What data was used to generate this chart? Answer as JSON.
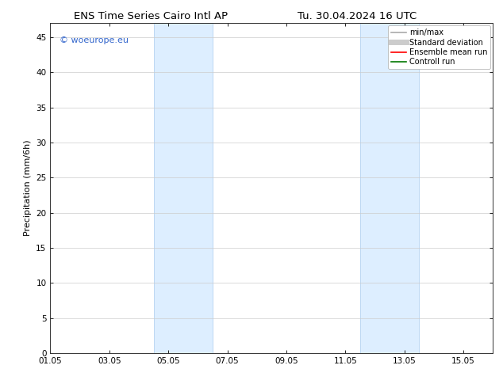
{
  "title_left": "ENS Time Series Cairo Intl AP",
  "title_right": "Tu. 30.04.2024 16 UTC",
  "ylabel": "Precipitation (mm/6h)",
  "ylim": [
    0,
    47
  ],
  "yticks": [
    0,
    5,
    10,
    15,
    20,
    25,
    30,
    35,
    40,
    45
  ],
  "xtick_labels": [
    "01.05",
    "03.05",
    "05.05",
    "07.05",
    "09.05",
    "11.05",
    "13.05",
    "15.05"
  ],
  "xtick_positions": [
    0,
    2,
    4,
    6,
    8,
    10,
    12,
    14
  ],
  "xlim": [
    0,
    15
  ],
  "shaded_regions": [
    {
      "x_start": 3.5,
      "x_end": 5.5
    },
    {
      "x_start": 10.5,
      "x_end": 12.5
    }
  ],
  "shaded_color": "#ddeeff",
  "shaded_edge_color": "#aaccee",
  "watermark_text": "© woeurope.eu",
  "watermark_color": "#3366cc",
  "legend_entries": [
    {
      "label": "min/max",
      "color": "#aaaaaa",
      "lw": 1.2,
      "style": "solid"
    },
    {
      "label": "Standard deviation",
      "color": "#cccccc",
      "lw": 5,
      "style": "solid"
    },
    {
      "label": "Ensemble mean run",
      "color": "#ff0000",
      "lw": 1.2,
      "style": "solid"
    },
    {
      "label": "Controll run",
      "color": "#007700",
      "lw": 1.2,
      "style": "solid"
    }
  ],
  "background_color": "#ffffff",
  "grid_color": "#cccccc",
  "title_fontsize": 9.5,
  "axis_label_fontsize": 8,
  "tick_fontsize": 7.5,
  "legend_fontsize": 7,
  "watermark_fontsize": 8
}
